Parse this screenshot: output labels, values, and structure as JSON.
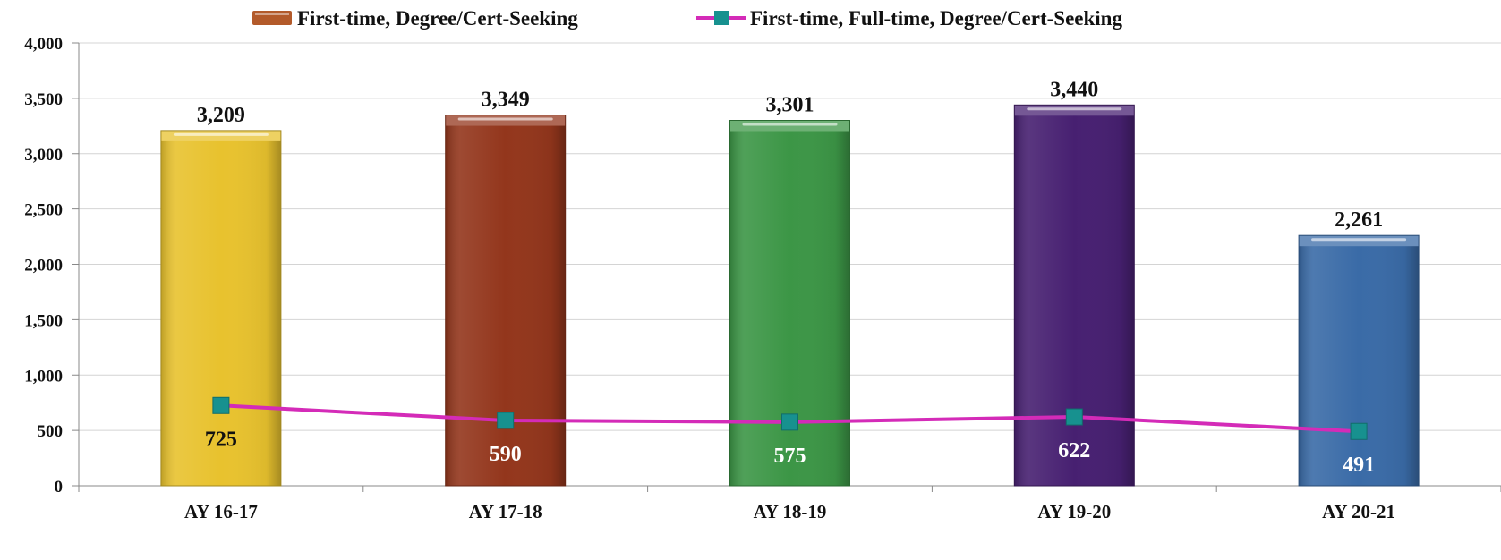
{
  "chart_data": {
    "type": "bar",
    "categories": [
      "AY 16-17",
      "AY 17-18",
      "AY 18-19",
      "AY 19-20",
      "AY 20-21"
    ],
    "series": [
      {
        "name": "First-time, Degree/Cert-Seeking",
        "type": "bar",
        "values": [
          3209,
          3349,
          3301,
          3440,
          2261
        ],
        "labels": [
          "3,209",
          "3,349",
          "3,301",
          "3,440",
          "2,261"
        ],
        "colors": [
          "#E8C22E",
          "#93361C",
          "#3C9646",
          "#472071",
          "#3A6BA7"
        ],
        "legend_color": "#B35A2A"
      },
      {
        "name": "First-time, Full-time, Degree/Cert-Seeking",
        "type": "line",
        "values": [
          725,
          590,
          575,
          622,
          491
        ],
        "labels": [
          "725",
          "590",
          "575",
          "622",
          "491"
        ],
        "line_color": "#D42BB8",
        "marker_color": "#17918F",
        "label_colors": [
          "#111111",
          "#ffffff",
          "#ffffff",
          "#ffffff",
          "#ffffff"
        ]
      }
    ],
    "y_ticks": [
      0,
      500,
      1000,
      1500,
      2000,
      2500,
      3000,
      3500,
      4000
    ],
    "y_tick_labels": [
      "0",
      "500",
      "1,000",
      "1,500",
      "2,000",
      "2,500",
      "3,000",
      "3,500",
      "4,000"
    ],
    "ylim": [
      0,
      4000
    ],
    "grid": true,
    "legend_position": "top",
    "title": "",
    "xlabel": "",
    "ylabel": ""
  }
}
